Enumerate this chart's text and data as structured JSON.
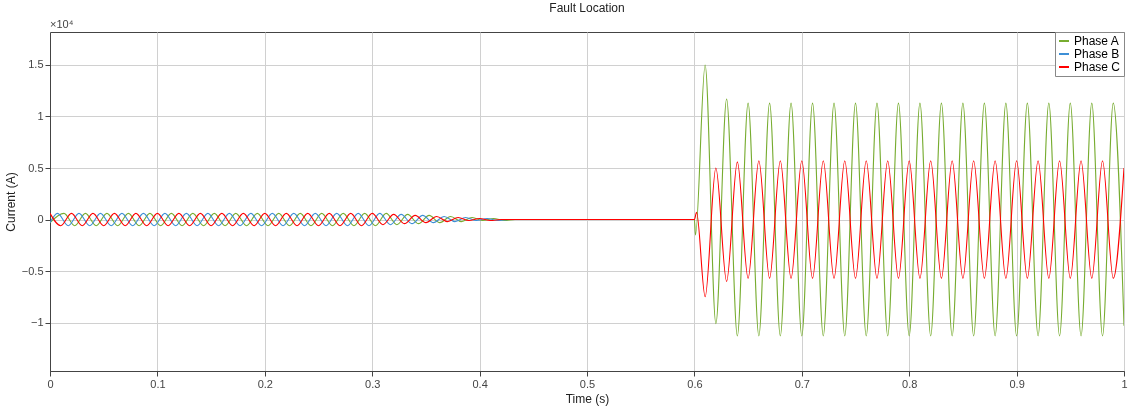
{
  "chart_data": {
    "type": "line",
    "title": "Fault Location",
    "xlabel": "Time (s)",
    "ylabel": "Current (A)",
    "annotations": [
      "×10⁴"
    ],
    "xlim": [
      0,
      1
    ],
    "xticks": [
      0,
      0.1,
      0.2,
      0.3,
      0.4,
      0.5,
      0.6,
      0.7,
      0.8,
      0.9,
      1
    ],
    "ylim": [
      -1.47,
      1.82
    ],
    "yticks": [
      -1,
      -0.5,
      0,
      0.5,
      1,
      1.5
    ],
    "grid": true,
    "legend": "top right",
    "line_style": "solid",
    "marker": "none",
    "series": [
      {
        "name": "Phase A",
        "color": "#77ac30",
        "x": [
          0,
          0.013,
          0.023,
          0.033,
          0.043,
          0.053,
          0.063,
          0.073,
          0.083,
          0.093,
          0.103,
          0.113,
          0.123,
          0.133,
          0.143,
          0.153,
          0.163,
          0.173,
          0.183,
          0.193,
          0.203,
          0.213,
          0.223,
          0.233,
          0.243,
          0.253,
          0.263,
          0.273,
          0.283,
          0.293,
          0.303,
          0.313,
          0.323,
          0.333,
          0.343,
          0.353,
          0.363,
          0.373,
          0.383,
          0.393,
          0.403,
          0.413,
          0.423,
          0.433,
          0.443,
          0.453,
          0.47,
          0.6,
          0.601,
          0.61,
          0.62,
          0.63,
          0.64,
          0.65,
          0.66,
          0.67,
          0.68,
          0.69,
          0.7,
          0.71,
          0.72,
          0.73,
          0.74,
          0.75,
          0.76,
          0.77,
          0.78,
          0.79,
          0.8,
          0.81,
          0.82,
          0.83,
          0.84,
          0.85,
          0.86,
          0.87,
          0.88,
          0.89,
          0.9,
          0.91,
          0.92,
          0.93,
          0.94,
          0.95,
          0.96,
          0.97,
          0.98,
          0.99,
          1
        ],
        "values": [
          -0.03,
          0.06,
          -0.06,
          0.06,
          -0.06,
          0.06,
          -0.06,
          0.06,
          -0.06,
          0.06,
          -0.06,
          0.06,
          -0.06,
          0.06,
          -0.06,
          0.06,
          -0.06,
          0.06,
          -0.06,
          0.06,
          -0.06,
          0.06,
          -0.06,
          0.06,
          -0.06,
          0.06,
          -0.06,
          0.06,
          -0.06,
          0.06,
          -0.06,
          0.06,
          -0.05,
          0.05,
          -0.04,
          0.04,
          -0.03,
          0.03,
          -0.02,
          0.02,
          -0.01,
          0.01,
          -0.01,
          0,
          0,
          0,
          0,
          0,
          -0.15,
          1.5,
          -1.01,
          1.17,
          -1.13,
          1.13,
          -1.13,
          1.13,
          -1.13,
          1.13,
          -1.13,
          1.13,
          -1.13,
          1.13,
          -1.13,
          1.13,
          -1.13,
          1.13,
          -1.13,
          1.13,
          -1.13,
          1.13,
          -1.13,
          1.13,
          -1.13,
          1.13,
          -1.13,
          1.13,
          -1.13,
          1.13,
          -1.13,
          1.13,
          -1.13,
          1.13,
          -1.13,
          1.13,
          -1.13,
          1.13,
          -1.13,
          1.13,
          -1.03
        ]
      },
      {
        "name": "Phase B",
        "color": "#3d8fd6",
        "x": [
          0,
          0.007,
          0.017,
          0.027,
          0.037,
          0.047,
          0.057,
          0.067,
          0.077,
          0.087,
          0.097,
          0.107,
          0.117,
          0.127,
          0.137,
          0.147,
          0.157,
          0.167,
          0.177,
          0.187,
          0.197,
          0.207,
          0.217,
          0.227,
          0.237,
          0.247,
          0.257,
          0.267,
          0.277,
          0.287,
          0.297,
          0.307,
          0.317,
          0.327,
          0.337,
          0.347,
          0.357,
          0.367,
          0.377,
          0.387,
          0.397,
          0.407,
          0.417,
          0.427,
          0.437
        ],
        "values": [
          -0.03,
          0.06,
          -0.06,
          0.06,
          -0.06,
          0.06,
          -0.06,
          0.06,
          -0.06,
          0.06,
          -0.06,
          0.06,
          -0.06,
          0.06,
          -0.06,
          0.06,
          -0.06,
          0.06,
          -0.06,
          0.06,
          -0.06,
          0.06,
          -0.06,
          0.06,
          -0.06,
          0.06,
          -0.06,
          0.06,
          -0.06,
          0.06,
          -0.06,
          0.06,
          -0.05,
          0.05,
          -0.04,
          0.04,
          -0.03,
          0.03,
          -0.02,
          0.02,
          -0.01,
          0.01,
          -0.01,
          0,
          0
        ]
      },
      {
        "name": "Phase C",
        "color": "#ff0000",
        "x": [
          0,
          0.01,
          0.02,
          0.03,
          0.04,
          0.05,
          0.06,
          0.07,
          0.08,
          0.09,
          0.1,
          0.11,
          0.12,
          0.13,
          0.14,
          0.15,
          0.16,
          0.17,
          0.18,
          0.19,
          0.2,
          0.21,
          0.22,
          0.23,
          0.24,
          0.25,
          0.26,
          0.27,
          0.28,
          0.29,
          0.3,
          0.31,
          0.32,
          0.33,
          0.34,
          0.35,
          0.36,
          0.37,
          0.38,
          0.39,
          0.4,
          0.41,
          0.42,
          0.43,
          0.44,
          0.46,
          0.6,
          0.602,
          0.61,
          0.62,
          0.63,
          0.64,
          0.65,
          0.66,
          0.67,
          0.68,
          0.69,
          0.7,
          0.71,
          0.72,
          0.73,
          0.74,
          0.75,
          0.76,
          0.77,
          0.78,
          0.79,
          0.8,
          0.81,
          0.82,
          0.83,
          0.84,
          0.85,
          0.86,
          0.87,
          0.88,
          0.89,
          0.9,
          0.91,
          0.92,
          0.93,
          0.94,
          0.95,
          0.96,
          0.97,
          0.98,
          0.99,
          1
        ],
        "values": [
          0.06,
          -0.06,
          0.06,
          -0.06,
          0.06,
          -0.06,
          0.06,
          -0.06,
          0.06,
          -0.06,
          0.06,
          -0.06,
          0.06,
          -0.06,
          0.06,
          -0.06,
          0.06,
          -0.06,
          0.06,
          -0.06,
          0.06,
          -0.06,
          0.06,
          -0.06,
          0.06,
          -0.06,
          0.06,
          -0.06,
          0.06,
          -0.06,
          0.06,
          -0.05,
          0.05,
          -0.04,
          0.04,
          -0.03,
          0.03,
          -0.02,
          0.02,
          -0.01,
          0.01,
          -0.01,
          0,
          0,
          0,
          0,
          0,
          0.07,
          -0.75,
          0.5,
          -0.6,
          0.56,
          -0.57,
          0.57,
          -0.57,
          0.57,
          -0.57,
          0.57,
          -0.57,
          0.57,
          -0.57,
          0.57,
          -0.57,
          0.57,
          -0.57,
          0.57,
          -0.57,
          0.57,
          -0.57,
          0.57,
          -0.57,
          0.57,
          -0.57,
          0.57,
          -0.57,
          0.57,
          -0.57,
          0.57,
          -0.57,
          0.57,
          -0.57,
          0.57,
          -0.57,
          0.57,
          -0.57,
          0.57,
          -0.57,
          0.5
        ]
      }
    ]
  }
}
